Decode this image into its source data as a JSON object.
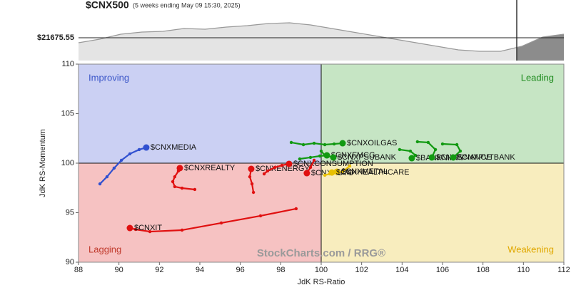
{
  "chart_data": [
    {
      "type": "area",
      "title": "$CNX500",
      "subtitle": "(5 weeks ending May 09 15:30, 2025)",
      "values": [
        21550,
        21640,
        21766,
        21820,
        21838,
        21910,
        21892,
        21946,
        21982,
        22036,
        22054,
        22000,
        21910,
        21820,
        21730,
        21640,
        21550,
        21460,
        21370,
        21334,
        21334,
        21460,
        21694,
        21766
      ],
      "ylim": [
        21100,
        22630
      ],
      "color": "#999999",
      "reference": {
        "value": 21675.55,
        "label": "$21675.55"
      }
    },
    {
      "type": "rrg",
      "xlabel": "JdK RS-Ratio",
      "ylabel": "JdK RS-Momentum",
      "xlim": [
        88,
        112
      ],
      "ylim": [
        90,
        110
      ],
      "xticks": [
        88,
        90,
        92,
        94,
        96,
        98,
        100,
        102,
        104,
        106,
        108,
        110,
        112
      ],
      "yticks": [
        90,
        95,
        100,
        105,
        110
      ],
      "quadrants": {
        "improving": "Improving",
        "leading": "Leading",
        "lagging": "Lagging",
        "weakening": "Weakening"
      },
      "watermark": "StockCharts.com / RRG®",
      "series": [
        {
          "name": "$CNXMEDIA",
          "color": "#3050d0",
          "x": [
            89.06,
            89.41,
            89.76,
            90.12,
            90.54,
            91.0,
            91.35
          ],
          "y": [
            97.91,
            98.63,
            99.5,
            100.29,
            100.94,
            101.37,
            101.58
          ]
        },
        {
          "name": "$CNXIT",
          "color": "#e01010",
          "x": [
            98.76,
            97.0,
            95.06,
            93.12,
            91.53,
            90.82,
            90.54
          ],
          "y": [
            95.4,
            94.68,
            93.96,
            93.24,
            93.09,
            93.31,
            93.45
          ]
        },
        {
          "name": "$CNXREALTY",
          "color": "#e01010",
          "x": [
            93.75,
            93.12,
            92.76,
            92.66,
            92.76,
            92.94,
            93.01
          ],
          "y": [
            97.34,
            97.48,
            97.63,
            98.13,
            98.63,
            99.21,
            99.5
          ]
        },
        {
          "name": "$CNXENERGY",
          "color": "#e01010",
          "x": [
            96.65,
            96.58,
            96.47,
            96.54
          ],
          "y": [
            97.05,
            97.91,
            98.63,
            99.42
          ]
        },
        {
          "name": "$CNXCONSUMPTION",
          "color": "#e01010",
          "x": [
            97.18,
            97.35,
            97.71,
            98.06,
            98.41
          ],
          "y": [
            98.92,
            99.21,
            99.57,
            99.78,
            99.93
          ]
        },
        {
          "name": "$CNXAUTO",
          "color": "#e01010",
          "x": [
            99.65,
            99.47,
            99.29
          ],
          "y": [
            100.29,
            99.57,
            98.99
          ]
        },
        {
          "name": "$CNXMETAL",
          "color": "#e8c000",
          "x": [
            101.41,
            101.06,
            100.78
          ],
          "y": [
            99.71,
            99.14,
            99.14
          ]
        },
        {
          "name": "$CNXHEALTHCARE",
          "color": "#e8c000",
          "x": [
            100.18,
            100.42,
            100.53
          ],
          "y": [
            98.78,
            98.92,
            99.06
          ]
        },
        {
          "name": "$CNXFMCG",
          "color": "#119911",
          "x": [
            98.94,
            99.47,
            99.93,
            100.28
          ],
          "y": [
            100.43,
            100.58,
            100.72,
            100.79
          ]
        },
        {
          "name": "$CNXPSUBANK",
          "color": "#119911",
          "x": [
            100,
            100.18,
            100.6
          ],
          "y": [
            101.22,
            100.79,
            100.58
          ]
        },
        {
          "name": "$CNXOILGAS",
          "color": "#119911",
          "x": [
            98.52,
            99.12,
            99.65,
            100.18,
            100.64,
            101.06
          ],
          "y": [
            102.09,
            101.87,
            102.01,
            101.87,
            101.94,
            102.01
          ]
        },
        {
          "name": "$BANKNIFTY",
          "color": "#119911",
          "x": [
            103.88,
            104.41,
            104.66,
            104.48
          ],
          "y": [
            101.37,
            101.22,
            100.79,
            100.5
          ]
        },
        {
          "name": "$CNXFINANCE",
          "color": "#119911",
          "x": [
            104.76,
            105.29,
            105.65,
            105.47
          ],
          "y": [
            102.16,
            102.09,
            101.37,
            100.58
          ]
        },
        {
          "name": "$CNXPVTBANK",
          "color": "#119911",
          "x": [
            106,
            106.71,
            106.88,
            106.53
          ],
          "y": [
            101.94,
            101.87,
            101.22,
            100.58
          ]
        }
      ]
    }
  ]
}
